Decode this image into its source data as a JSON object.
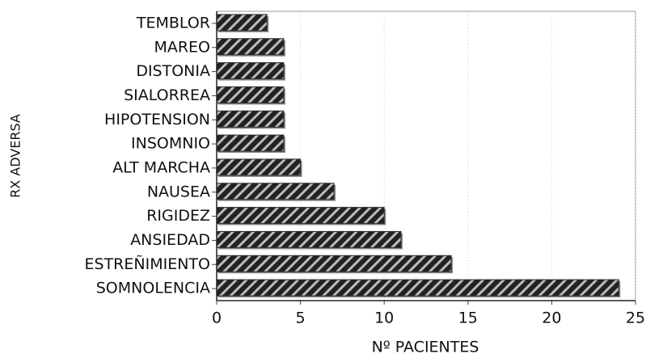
{
  "chart_data": {
    "type": "bar",
    "orientation": "horizontal",
    "xlabel": "Nº PACIENTES",
    "ylabel": "RX ADVERSA",
    "categories": [
      "TEMBLOR",
      "MAREO",
      "DISTONIA",
      "SIALORREA",
      "HIPOTENSION",
      "INSOMNIO",
      "ALT MARCHA",
      "NAUSEA",
      "RIGIDEZ",
      "ANSIEDAD",
      "ESTREÑIMIENTO",
      "SOMNOLENCIA"
    ],
    "values": [
      3,
      4,
      4,
      4,
      4,
      4,
      5,
      7,
      10,
      11,
      14,
      24
    ],
    "color": "#2a2a2a",
    "xlim": [
      0,
      25
    ],
    "xticks": [
      0,
      5,
      10,
      15,
      20,
      25
    ],
    "grid": true
  }
}
